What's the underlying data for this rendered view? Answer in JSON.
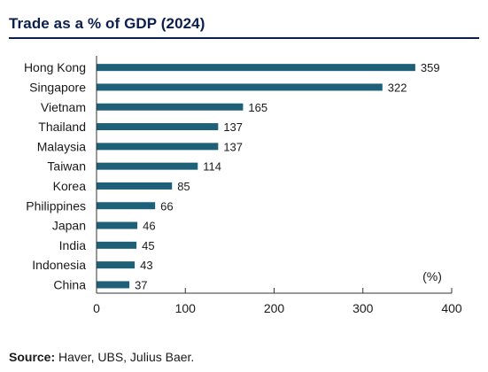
{
  "title": "Trade as a % of GDP (2024)",
  "source_label": "Source:",
  "source_text": " Haver, UBS, Julius Baer.",
  "colors": {
    "bar": "#1f6079",
    "title": "#0b1f4e",
    "axis": "#333333"
  },
  "chart_data": {
    "type": "bar",
    "orientation": "horizontal",
    "categories": [
      "Hong Kong",
      "Singapore",
      "Vietnam",
      "Thailand",
      "Malaysia",
      "Taiwan",
      "Korea",
      "Philippines",
      "Japan",
      "India",
      "Indonesia",
      "China"
    ],
    "values": [
      359,
      322,
      165,
      137,
      137,
      114,
      85,
      66,
      46,
      45,
      43,
      37
    ],
    "unit_label": "(%)",
    "xlim": [
      0,
      400
    ],
    "xticks": [
      0,
      100,
      200,
      300,
      400
    ],
    "grid": false,
    "data_labels": true
  }
}
